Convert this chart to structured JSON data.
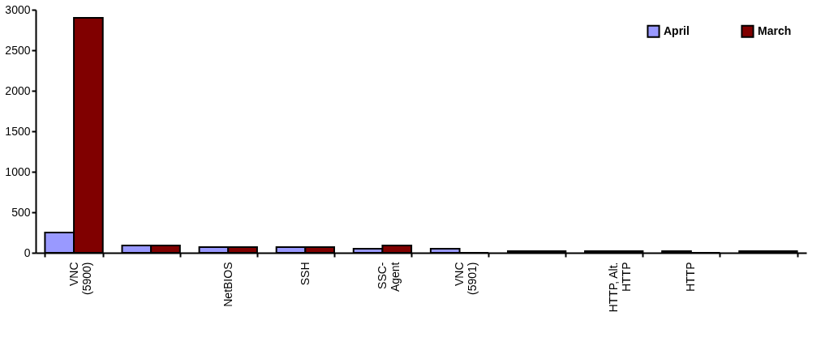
{
  "chart_data": {
    "type": "bar",
    "categories": [
      "VNC\n(5900)",
      null,
      "NetBIOS",
      "SSH",
      "SSC-\nAgent",
      "VNC\n(5901)",
      null,
      "HTTP, Alt.\nHTTP",
      "HTTP",
      null
    ],
    "series": [
      {
        "name": "April",
        "color": "#9999ff",
        "values": [
          250,
          90,
          70,
          70,
          50,
          50,
          20,
          20,
          20,
          20
        ]
      },
      {
        "name": "March",
        "color": "#800000",
        "values": [
          2900,
          90,
          70,
          70,
          90,
          0,
          20,
          20,
          0,
          20
        ]
      }
    ],
    "ylim": [
      0,
      3000
    ],
    "yticks": [
      0,
      500,
      1000,
      1500,
      2000,
      2500,
      3000
    ],
    "grid": false,
    "legend": "top right"
  }
}
